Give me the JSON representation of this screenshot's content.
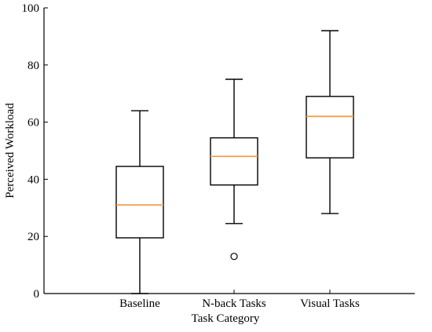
{
  "chart_data": {
    "type": "box",
    "title": "",
    "xlabel": "Task Category",
    "ylabel": "Perceived Workload",
    "ylim": [
      0,
      100
    ],
    "yticks": [
      0,
      20,
      40,
      60,
      80,
      100
    ],
    "categories": [
      "Baseline",
      "N-back Tasks",
      "Visual Tasks"
    ],
    "boxes": [
      {
        "category": "Baseline",
        "whisker_low": 0,
        "q1": 19.5,
        "median": 31,
        "q3": 44.5,
        "whisker_high": 64,
        "outliers": []
      },
      {
        "category": "N-back Tasks",
        "whisker_low": 24.5,
        "q1": 38,
        "median": 48,
        "q3": 54.5,
        "whisker_high": 75,
        "outliers": [
          13
        ]
      },
      {
        "category": "Visual Tasks",
        "whisker_low": 28,
        "q1": 47.5,
        "median": 62,
        "q3": 69,
        "whisker_high": 92,
        "outliers": []
      }
    ],
    "median_color": "#f0a04b",
    "box_color": "#000000",
    "grid": false,
    "legend": "none"
  }
}
